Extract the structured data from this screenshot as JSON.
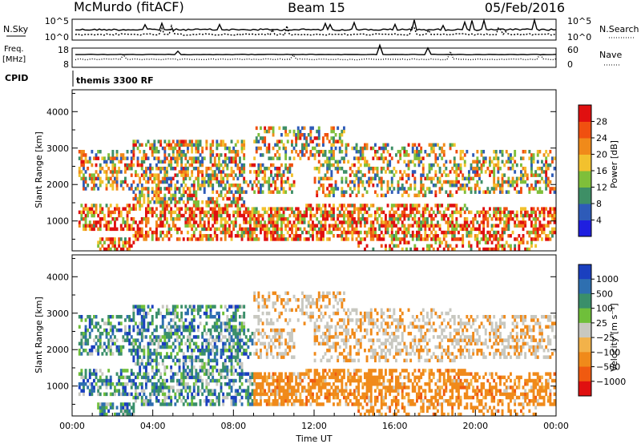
{
  "chart_data": [
    {
      "type": "line",
      "title": "McMurdo (fitACF)",
      "beam": "Beam 15",
      "date": "05/Feb/2016",
      "left_label": "N.Sky",
      "right_label": "N.Search",
      "left_ticks": [
        "10^5",
        "10^0"
      ],
      "right_ticks": [
        "10^5",
        "10^0"
      ]
    },
    {
      "type": "line",
      "left_label": "Freq.\n[MHz]",
      "left_ticks": [
        "18",
        "8"
      ],
      "right_label": "Nave",
      "right_ticks": [
        "60",
        "0"
      ],
      "cpid_label": "CPID",
      "cpid_text": "themis 3300 RF"
    },
    {
      "type": "heatmap",
      "ylabel": "Slant Range [km]",
      "ylim": [
        180,
        4600
      ],
      "yticks": [
        1000,
        2000,
        3000,
        4000
      ],
      "colorbar_label": "Power [dB]",
      "colorbar_ticks": [
        "4",
        "8",
        "12",
        "16",
        "20",
        "24",
        "28"
      ],
      "colorbar_colors": [
        "#1f1fe0",
        "#2e5bb8",
        "#3e8f66",
        "#7fbf3a",
        "#f2c12e",
        "#f08a1a",
        "#f05010",
        "#e01010"
      ]
    },
    {
      "type": "heatmap",
      "ylabel": "Slant Range [km]",
      "xlabel": "Time UT",
      "ylim": [
        180,
        4600
      ],
      "yticks": [
        1000,
        2000,
        3000,
        4000
      ],
      "xticks": [
        "00:00",
        "04:00",
        "08:00",
        "12:00",
        "16:00",
        "20:00",
        "00:00"
      ],
      "colorbar_label": "Velocity [m s⁻¹]",
      "colorbar_ticks": [
        "1000",
        "500",
        "100",
        "25",
        "−25",
        "−100",
        "−500",
        "−1000"
      ],
      "colorbar_colors": [
        "#1a3fbf",
        "#2e6fb0",
        "#3a8f6a",
        "#6fbf3a",
        "#c8c8c0",
        "#f2b24a",
        "#f08a1a",
        "#f05a10",
        "#e01010"
      ]
    }
  ]
}
